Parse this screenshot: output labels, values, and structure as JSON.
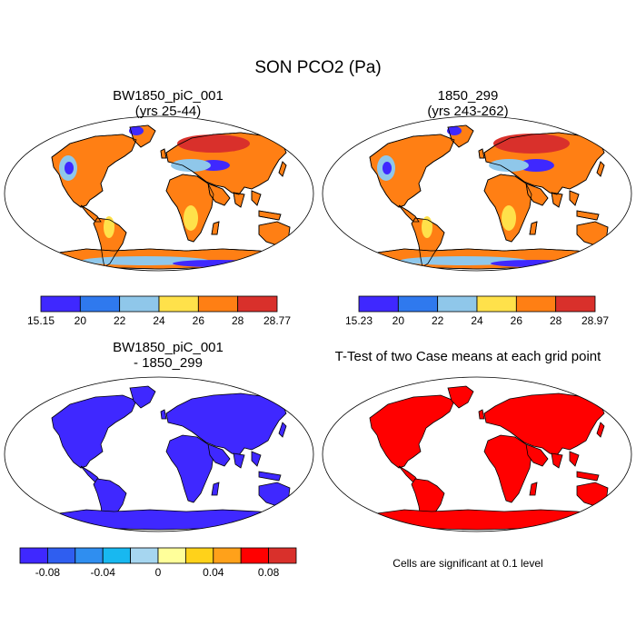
{
  "figure": {
    "title": "SON PCO2 (Pa)",
    "note": "Cells are significant at 0.1 level"
  },
  "colors": {
    "land_outline": "#000000",
    "ocean": "#ffffff",
    "ttest_fill": "#ff0000",
    "diff_fill": "#3f28ff"
  },
  "chart_data": [
    {
      "type": "heatmap",
      "id": "case1",
      "title_line1": "BW1850_piC_001",
      "title_line2": "(yrs 25-44)",
      "colorbar": {
        "labels": [
          "15.15",
          "20",
          "22",
          "24",
          "26",
          "28",
          "28.77"
        ],
        "colors": [
          "#3f28ff",
          "#2f79ee",
          "#8fc7ea",
          "#ffe14a",
          "#ff7f14",
          "#d9302b"
        ]
      }
    },
    {
      "type": "heatmap",
      "id": "case2",
      "title_line1": "1850_299",
      "title_line2": "(yrs 243-262)",
      "colorbar": {
        "labels": [
          "15.23",
          "20",
          "22",
          "24",
          "26",
          "28",
          "28.97"
        ],
        "colors": [
          "#3f28ff",
          "#2f79ee",
          "#8fc7ea",
          "#ffe14a",
          "#ff7f14",
          "#d9302b"
        ]
      }
    },
    {
      "type": "heatmap",
      "id": "diff",
      "title_line1": "BW1850_piC_001",
      "title_line2": "- 1850_299",
      "colorbar": {
        "labels": [
          "-0.08",
          "-0.04",
          "0",
          "0.04",
          "0.08"
        ],
        "tick_bounds": [
          1,
          3,
          5,
          7,
          9
        ],
        "colors": [
          "#3f28ff",
          "#2f5ef0",
          "#2f8ef0",
          "#18b8f0",
          "#a6d6f0",
          "#ffff9a",
          "#ffd21a",
          "#ffa11a",
          "#ff0000",
          "#d9302b"
        ]
      }
    },
    {
      "type": "heatmap",
      "id": "ttest",
      "title_line1": "T-Test of two Case means at each grid point"
    }
  ]
}
